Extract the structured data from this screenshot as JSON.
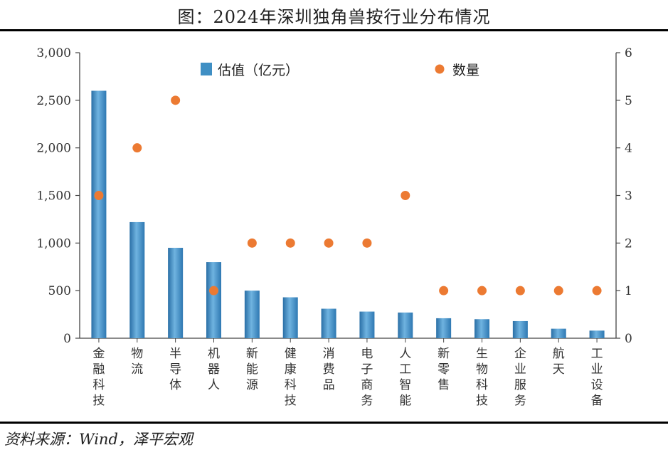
{
  "title": "图：2024年深圳独角兽按行业分布情况",
  "source": "资料来源：Wind，泽平宏观",
  "colors": {
    "bar": "#3f8fc4",
    "dot": "#ec7a32",
    "axis": "#444444"
  },
  "chart_data": {
    "type": "bar+scatter",
    "categories": [
      "金融科技",
      "物流",
      "半导体",
      "机器人",
      "新能源",
      "健康科技",
      "消费品",
      "电子商务",
      "人工智能",
      "新零售",
      "生物科技",
      "企业服务",
      "航天",
      "工业设备"
    ],
    "series": [
      {
        "name": "估值（亿元）",
        "type": "bar",
        "axis": "left",
        "values": [
          2600,
          1220,
          950,
          800,
          500,
          430,
          310,
          280,
          270,
          210,
          200,
          180,
          100,
          80
        ]
      },
      {
        "name": "数量",
        "type": "scatter",
        "axis": "right",
        "values": [
          3,
          4,
          5,
          1,
          2,
          2,
          2,
          2,
          3,
          1,
          1,
          1,
          1,
          1
        ]
      }
    ],
    "y_left": {
      "min": 0,
      "max": 3000,
      "ticks": [
        "0",
        "500",
        "1,000",
        "1,500",
        "2,000",
        "2,500",
        "3,000"
      ]
    },
    "y_right": {
      "min": 0,
      "max": 6,
      "ticks": [
        "0",
        "1",
        "2",
        "3",
        "4",
        "5",
        "6"
      ]
    },
    "legend_placement": "top-center",
    "grid": false
  }
}
